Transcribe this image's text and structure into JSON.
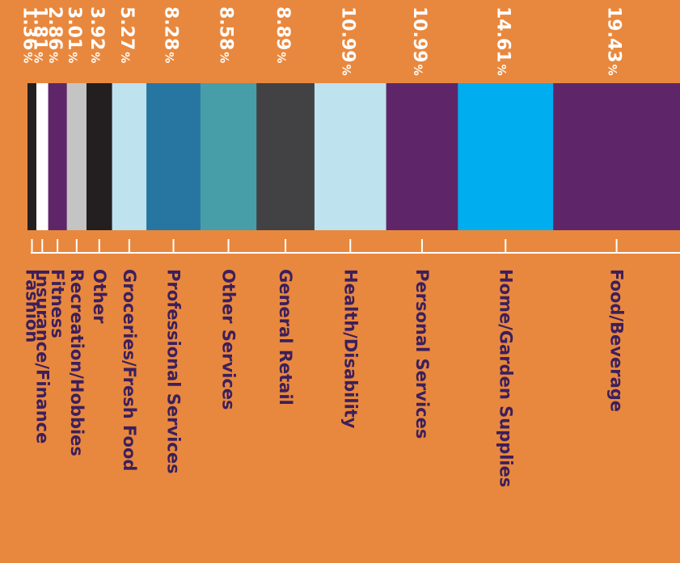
{
  "background_color": "#E8883E",
  "chart_data": {
    "type": "bar",
    "orientation": "stacked-horizontal",
    "categories": [
      "Fashion",
      "Insurance/Finance",
      "Fitness",
      "Recreation/Hobbies",
      "Other",
      "Groceries/Fresh Food",
      "Professional Services",
      "Other Services",
      "General Retail",
      "Health/Disability",
      "Personal Services",
      "Home/Garden Supplies",
      "Food/Beverage"
    ],
    "values": [
      1.36,
      1.81,
      2.86,
      3.01,
      3.92,
      5.27,
      8.28,
      8.58,
      8.89,
      10.99,
      10.99,
      14.61,
      19.43
    ],
    "value_labels": [
      "1.36",
      "1.81",
      "2.86",
      "3.01",
      "3.92",
      "5.27",
      "8.28",
      "8.58",
      "8.89",
      "10.99",
      "10.99",
      "14.61",
      "19.43"
    ],
    "unit": "%",
    "colors": [
      "#231F20",
      "#FFFFFF",
      "#5E2669",
      "#C4C4C4",
      "#231F20",
      "#BEE2EE",
      "#2676A1",
      "#479EA9",
      "#424244",
      "#BEE2EE",
      "#5E2669",
      "#00AEEF",
      "#5E2669"
    ],
    "label_color": "#FFFFFF",
    "category_label_color": "#3C1F5C",
    "xlim": [
      0,
      100
    ]
  }
}
